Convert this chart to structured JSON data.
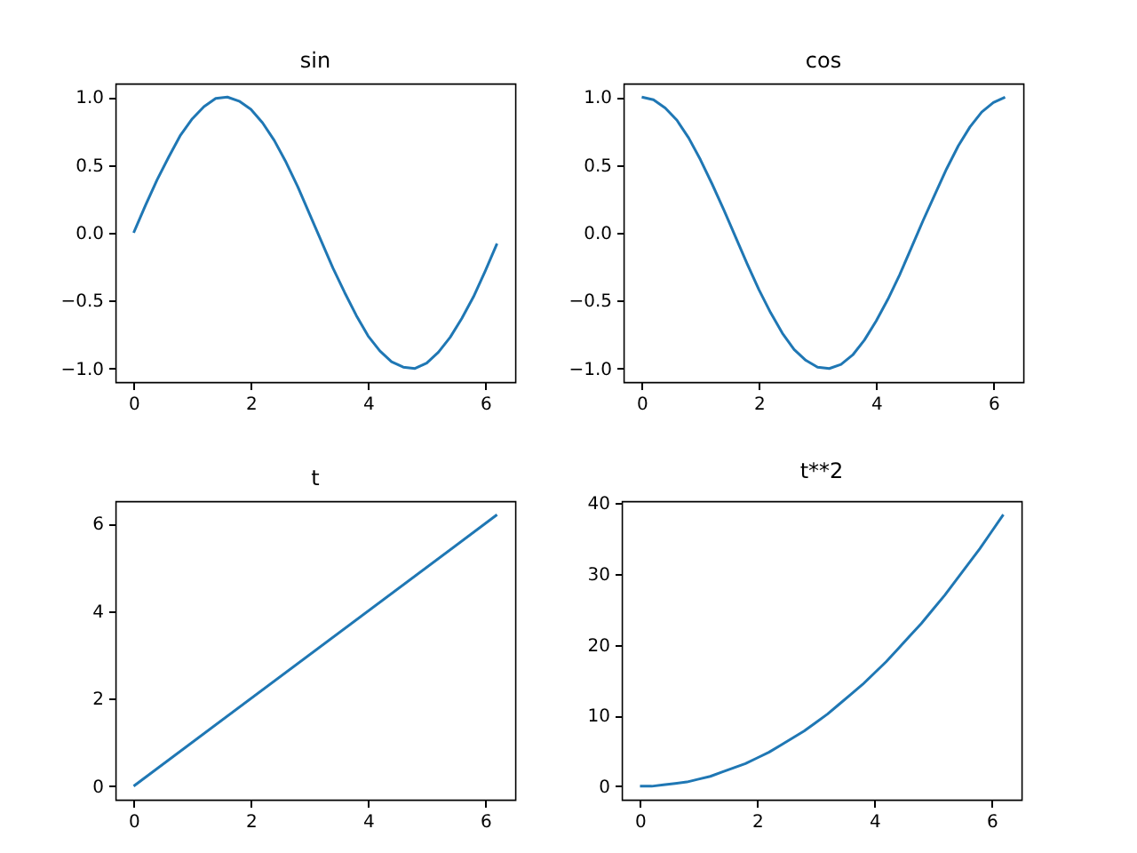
{
  "chart_data": [
    {
      "type": "line",
      "title": "sin",
      "x": [
        0,
        0.2,
        0.4,
        0.6,
        0.8,
        1.0,
        1.2,
        1.4,
        1.6,
        1.8,
        2.0,
        2.2,
        2.4,
        2.6,
        2.8,
        3.0,
        3.2,
        3.4,
        3.6,
        3.8,
        4.0,
        4.2,
        4.4,
        4.6,
        4.8,
        5.0,
        5.2,
        5.4,
        5.6,
        5.8,
        6.0,
        6.2
      ],
      "series": [
        {
          "color": "#1f77b4",
          "values": [
            0,
            0.2,
            0.39,
            0.56,
            0.72,
            0.84,
            0.93,
            0.99,
            1.0,
            0.97,
            0.91,
            0.81,
            0.68,
            0.52,
            0.34,
            0.14,
            -0.06,
            -0.26,
            -0.44,
            -0.61,
            -0.76,
            -0.87,
            -0.95,
            -0.99,
            -1.0,
            -0.96,
            -0.88,
            -0.77,
            -0.63,
            -0.47,
            -0.28,
            -0.08
          ]
        }
      ],
      "xlim": [
        -0.31,
        6.51
      ],
      "xticks": [
        0,
        2,
        4,
        6
      ],
      "ylim": [
        -1.1,
        1.1
      ],
      "yticks": [
        {
          "value": -1,
          "label": "−1.0"
        },
        {
          "value": -0.5,
          "label": "−0.5"
        },
        {
          "value": 0,
          "label": "0.0"
        },
        {
          "value": 0.5,
          "label": "0.5"
        },
        {
          "value": 1,
          "label": "1.0"
        }
      ],
      "grid": false
    },
    {
      "type": "line",
      "title": "cos",
      "x": [
        0,
        0.2,
        0.4,
        0.6,
        0.8,
        1.0,
        1.2,
        1.4,
        1.6,
        1.8,
        2.0,
        2.2,
        2.4,
        2.6,
        2.8,
        3.0,
        3.2,
        3.4,
        3.6,
        3.8,
        4.0,
        4.2,
        4.4,
        4.6,
        4.8,
        5.0,
        5.2,
        5.4,
        5.6,
        5.8,
        6.0,
        6.2
      ],
      "series": [
        {
          "color": "#1f77b4",
          "values": [
            1.0,
            0.98,
            0.92,
            0.83,
            0.7,
            0.54,
            0.36,
            0.17,
            -0.03,
            -0.23,
            -0.42,
            -0.59,
            -0.74,
            -0.86,
            -0.94,
            -0.99,
            -1.0,
            -0.97,
            -0.9,
            -0.79,
            -0.65,
            -0.49,
            -0.31,
            -0.11,
            0.09,
            0.28,
            0.47,
            0.64,
            0.78,
            0.89,
            0.96,
            1.0
          ]
        }
      ],
      "xlim": [
        -0.31,
        6.51
      ],
      "xticks": [
        0,
        2,
        4,
        6
      ],
      "ylim": [
        -1.1,
        1.1
      ],
      "yticks": [
        {
          "value": -1,
          "label": "−1.0"
        },
        {
          "value": -0.5,
          "label": "−0.5"
        },
        {
          "value": 0,
          "label": "0.0"
        },
        {
          "value": 0.5,
          "label": "0.5"
        },
        {
          "value": 1,
          "label": "1.0"
        }
      ],
      "grid": false
    },
    {
      "type": "line",
      "title": "t",
      "x": [
        0,
        6.2
      ],
      "series": [
        {
          "color": "#1f77b4",
          "values": [
            0,
            6.2
          ]
        }
      ],
      "xlim": [
        -0.31,
        6.51
      ],
      "xticks": [
        0,
        2,
        4,
        6
      ],
      "ylim": [
        -0.31,
        6.51
      ],
      "yticks": [
        0,
        2,
        4,
        6
      ],
      "grid": false
    },
    {
      "type": "line",
      "title": "t**2",
      "x": [
        0,
        0.2,
        0.4,
        0.6,
        0.8,
        1.0,
        1.2,
        1.4,
        1.6,
        1.8,
        2.0,
        2.2,
        2.4,
        2.6,
        2.8,
        3.0,
        3.2,
        3.4,
        3.6,
        3.8,
        4.0,
        4.2,
        4.4,
        4.6,
        4.8,
        5.0,
        5.2,
        5.4,
        5.6,
        5.8,
        6.0,
        6.2
      ],
      "series": [
        {
          "color": "#1f77b4",
          "values": [
            0,
            0.0,
            0.2,
            0.4,
            0.6,
            1.0,
            1.4,
            2.0,
            2.6,
            3.2,
            4.0,
            4.8,
            5.8,
            6.8,
            7.8,
            9.0,
            10.2,
            11.6,
            13.0,
            14.4,
            16.0,
            17.6,
            19.4,
            21.2,
            23.0,
            25.0,
            27.0,
            29.2,
            31.4,
            33.6,
            36.0,
            38.4
          ]
        }
      ],
      "xlim": [
        -0.31,
        6.51
      ],
      "xticks": [
        0,
        2,
        4,
        6
      ],
      "ylim": [
        -1.9,
        40.3
      ],
      "yticks": [
        0,
        10,
        20,
        30,
        40
      ],
      "grid": false
    }
  ]
}
